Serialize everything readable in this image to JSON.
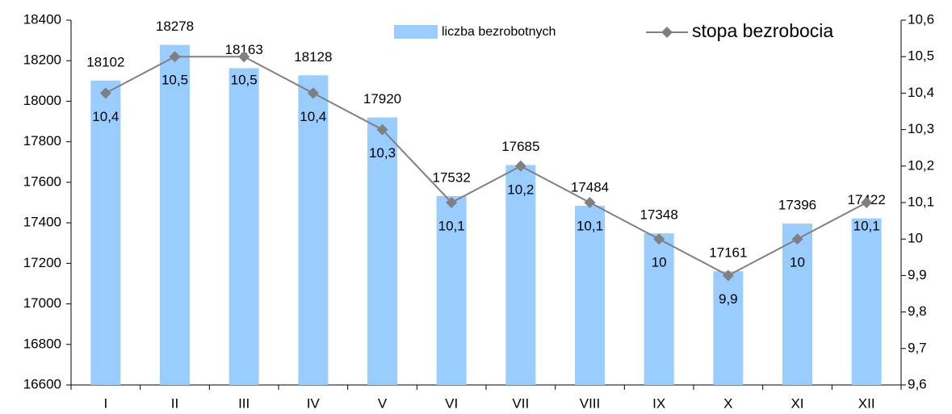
{
  "chart_data": {
    "type": "bar",
    "categories": [
      "I",
      "II",
      "III",
      "IV",
      "V",
      "VI",
      "VII",
      "VIII",
      "IX",
      "X",
      "XI",
      "XII"
    ],
    "series": [
      {
        "name": "liczba bezrobotnych",
        "type": "bar",
        "color": "#99ccff",
        "values": [
          18102,
          18278,
          18163,
          18128,
          17920,
          17532,
          17685,
          17484,
          17348,
          17161,
          17396,
          17422
        ]
      },
      {
        "name": "stopa bezrobocia",
        "type": "line",
        "axis": "y2",
        "color": "#808080",
        "values": [
          10.4,
          10.5,
          10.5,
          10.4,
          10.3,
          10.1,
          10.2,
          10.1,
          10,
          9.9,
          10,
          10.1
        ],
        "value_labels": [
          "10,4",
          "10,5",
          "10,5",
          "10,4",
          "10,3",
          "10,1",
          "10,2",
          "10,1",
          "10",
          "9,9",
          "10",
          "10,1"
        ]
      }
    ],
    "ylim": [
      16600,
      18400
    ],
    "yticks": [
      16600,
      16800,
      17000,
      17200,
      17400,
      17600,
      17800,
      18000,
      18200,
      18400
    ],
    "y2lim": [
      9.6,
      10.6
    ],
    "y2ticks": [
      {
        "value": 9.6,
        "label": "9,6"
      },
      {
        "value": 9.7,
        "label": "9,7"
      },
      {
        "value": 9.8,
        "label": "9,8"
      },
      {
        "value": 9.9,
        "label": "9,9"
      },
      10,
      {
        "value": 10.1,
        "label": "10,1"
      },
      {
        "value": 10.2,
        "label": "10,2"
      },
      {
        "value": 10.3,
        "label": "10,3"
      },
      {
        "value": 10.4,
        "label": "10,4"
      },
      {
        "value": 10.5,
        "label": "10,5"
      },
      {
        "value": 10.6,
        "label": "10,6"
      }
    ],
    "legend": "top",
    "grid": false
  }
}
